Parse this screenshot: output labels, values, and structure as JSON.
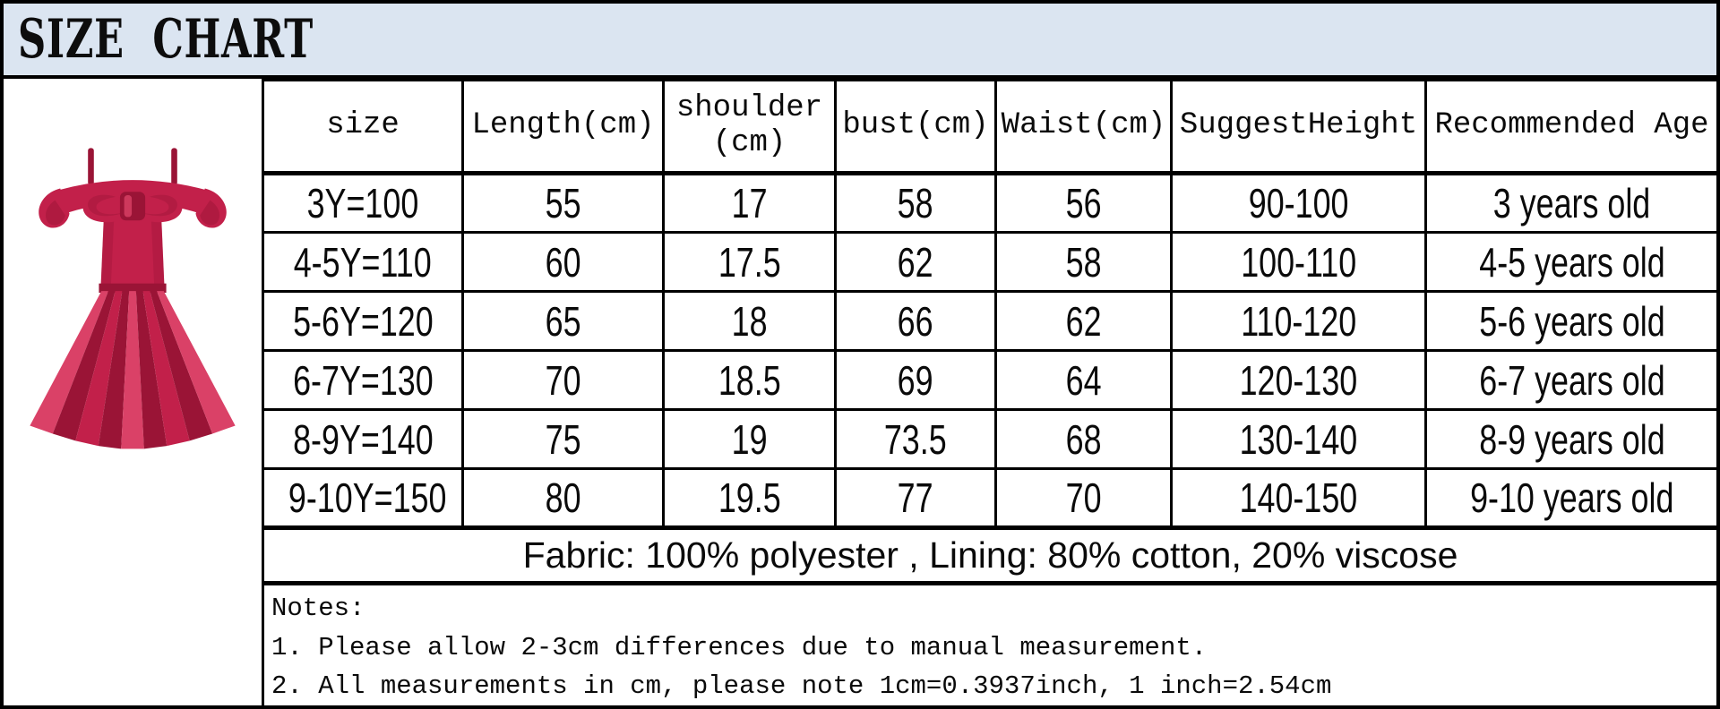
{
  "header": {
    "title": "SIZE CHART"
  },
  "image": {
    "alt": "red girls party dress with bow and pleated skirt"
  },
  "chart_data": {
    "type": "table",
    "title": "SIZE CHART",
    "columns": [
      "size",
      "Length(cm)",
      "shoulder\n(cm)",
      "bust(cm)",
      "Waist(cm)",
      "SuggestHeight",
      "Recommended Age"
    ],
    "rows": [
      [
        "3Y=100",
        "55",
        "17",
        "58",
        "56",
        "90-100",
        "3 years old"
      ],
      [
        "4-5Y=110",
        "60",
        "17.5",
        "62",
        "58",
        "100-110",
        "4-5 years old"
      ],
      [
        "5-6Y=120",
        "65",
        "18",
        "66",
        "62",
        "110-120",
        "5-6 years old"
      ],
      [
        "6-7Y=130",
        "70",
        "18.5",
        "69",
        "64",
        "120-130",
        "6-7 years old"
      ],
      [
        "8-9Y=140",
        "75",
        "19",
        "73.5",
        "68",
        "130-140",
        "8-9 years old"
      ],
      [
        "9-10Y=150",
        "80",
        "19.5",
        "77",
        "70",
        "140-150",
        "9-10 years old"
      ]
    ],
    "fabric_note": "Fabric: 100% polyester , Lining: 80% cotton, 20% viscose"
  },
  "notes": {
    "title": "Notes:",
    "lines": [
      "1. Please allow 2-3cm differences due to manual measurement.",
      "2. All measurements in cm, please note 1cm=0.3937inch, 1 inch=2.54cm"
    ]
  },
  "colors": {
    "title_bar_bg": "#dbe5f1",
    "border": "#000000",
    "dress_red": "#c2204a",
    "dress_red_dark": "#9a1436",
    "dress_red_light": "#da4167"
  }
}
